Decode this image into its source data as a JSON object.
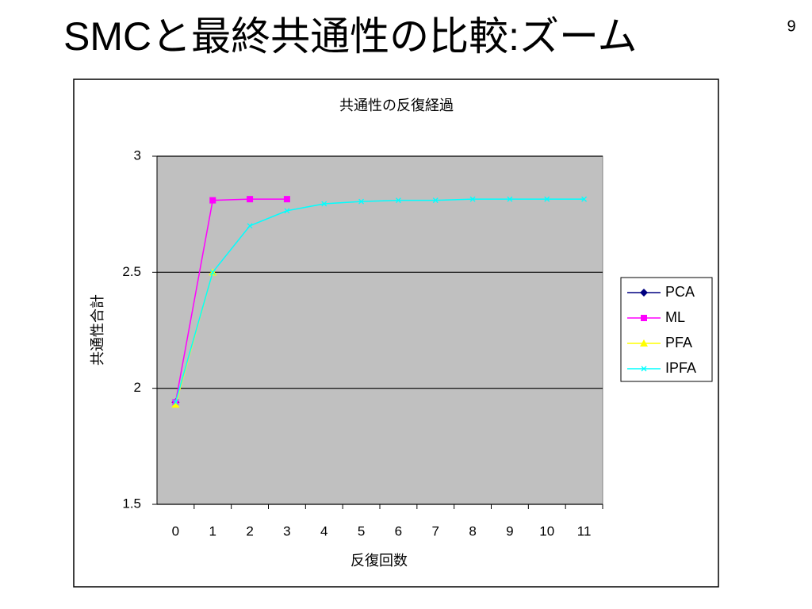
{
  "slide_title": "SMCと最終共通性の比較:ズーム",
  "page_number": "9",
  "chart_data": {
    "type": "line",
    "title": "共通性の反復経過",
    "x_label": "反復回数",
    "y_label": "共通性合計",
    "categories": [
      "0",
      "1",
      "2",
      "3",
      "4",
      "5",
      "6",
      "7",
      "8",
      "9",
      "10",
      "11"
    ],
    "ylim": [
      1.5,
      3
    ],
    "yticks": [
      1.5,
      2,
      2.5,
      3
    ],
    "grid": true,
    "legend": "right",
    "plot_background": "#c0c0c0",
    "series": [
      {
        "name": "PCA",
        "color": "#000080",
        "marker": "diamond",
        "values": [
          1.94,
          null,
          null,
          null,
          null,
          null,
          null,
          null,
          null,
          null,
          null,
          null
        ]
      },
      {
        "name": "ML",
        "color": "#ff00ff",
        "marker": "square",
        "values": [
          1.94,
          2.81,
          2.815,
          2.815,
          null,
          null,
          null,
          null,
          null,
          null,
          null,
          null
        ]
      },
      {
        "name": "PFA",
        "color": "#ffff00",
        "marker": "triangle",
        "values": [
          1.93,
          2.5,
          null,
          null,
          null,
          null,
          null,
          null,
          null,
          null,
          null,
          null
        ]
      },
      {
        "name": "IPFA",
        "color": "#00ffff",
        "marker": "x",
        "values": [
          1.94,
          2.5,
          2.7,
          2.765,
          2.795,
          2.805,
          2.81,
          2.81,
          2.815,
          2.815,
          2.815,
          2.815
        ]
      }
    ]
  }
}
